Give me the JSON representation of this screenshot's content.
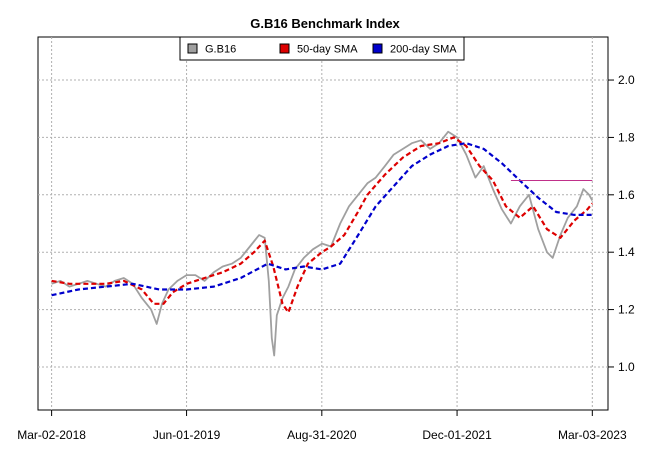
{
  "chart_data": {
    "type": "line",
    "title": "G.B16 Benchmark Index",
    "xlabel": "",
    "ylabel": "",
    "x_ticks": [
      "Mar-02-2018",
      "Jun-01-2019",
      "Aug-31-2020",
      "Dec-01-2021",
      "Mar-03-2023"
    ],
    "y_ticks": [
      "1.0",
      "1.2",
      "1.4",
      "1.6",
      "1.8",
      "2.0"
    ],
    "ylim": [
      0.85,
      2.15
    ],
    "xlim": [
      "2018-01-15",
      "2023-04-25"
    ],
    "y_axis_position": "right",
    "grid": true,
    "legend_position": "top-center",
    "series": [
      {
        "name": "G.B16",
        "color": "#a0a0a0",
        "style": "solid",
        "points": [
          [
            "2018-03-02",
            1.29
          ],
          [
            "2018-04-01",
            1.3
          ],
          [
            "2018-05-01",
            1.28
          ],
          [
            "2018-06-01",
            1.29
          ],
          [
            "2018-07-01",
            1.3
          ],
          [
            "2018-08-01",
            1.29
          ],
          [
            "2018-09-01",
            1.28
          ],
          [
            "2018-10-01",
            1.3
          ],
          [
            "2018-11-01",
            1.31
          ],
          [
            "2018-12-01",
            1.29
          ],
          [
            "2019-01-01",
            1.24
          ],
          [
            "2019-02-01",
            1.2
          ],
          [
            "2019-02-20",
            1.15
          ],
          [
            "2019-03-10",
            1.22
          ],
          [
            "2019-04-01",
            1.27
          ],
          [
            "2019-05-01",
            1.3
          ],
          [
            "2019-06-01",
            1.32
          ],
          [
            "2019-07-01",
            1.32
          ],
          [
            "2019-08-01",
            1.3
          ],
          [
            "2019-09-01",
            1.33
          ],
          [
            "2019-10-01",
            1.35
          ],
          [
            "2019-11-01",
            1.36
          ],
          [
            "2019-12-01",
            1.38
          ],
          [
            "2020-01-01",
            1.42
          ],
          [
            "2020-02-01",
            1.46
          ],
          [
            "2020-02-20",
            1.45
          ],
          [
            "2020-03-05",
            1.3
          ],
          [
            "2020-03-15",
            1.1
          ],
          [
            "2020-03-23",
            1.04
          ],
          [
            "2020-04-01",
            1.18
          ],
          [
            "2020-04-20",
            1.24
          ],
          [
            "2020-05-10",
            1.28
          ],
          [
            "2020-06-01",
            1.34
          ],
          [
            "2020-07-01",
            1.38
          ],
          [
            "2020-08-01",
            1.41
          ],
          [
            "2020-09-01",
            1.43
          ],
          [
            "2020-10-01",
            1.42
          ],
          [
            "2020-11-01",
            1.5
          ],
          [
            "2020-12-01",
            1.56
          ],
          [
            "2021-01-01",
            1.6
          ],
          [
            "2021-02-01",
            1.64
          ],
          [
            "2021-03-01",
            1.66
          ],
          [
            "2021-04-01",
            1.7
          ],
          [
            "2021-05-01",
            1.74
          ],
          [
            "2021-06-01",
            1.76
          ],
          [
            "2021-07-01",
            1.78
          ],
          [
            "2021-08-01",
            1.79
          ],
          [
            "2021-09-01",
            1.76
          ],
          [
            "2021-10-01",
            1.78
          ],
          [
            "2021-11-01",
            1.82
          ],
          [
            "2021-12-01",
            1.8
          ],
          [
            "2022-01-01",
            1.74
          ],
          [
            "2022-02-01",
            1.66
          ],
          [
            "2022-03-01",
            1.7
          ],
          [
            "2022-04-01",
            1.62
          ],
          [
            "2022-05-01",
            1.55
          ],
          [
            "2022-06-01",
            1.5
          ],
          [
            "2022-07-01",
            1.56
          ],
          [
            "2022-08-01",
            1.6
          ],
          [
            "2022-09-01",
            1.48
          ],
          [
            "2022-10-01",
            1.4
          ],
          [
            "2022-10-20",
            1.38
          ],
          [
            "2022-11-15",
            1.46
          ],
          [
            "2022-12-10",
            1.52
          ],
          [
            "2023-01-10",
            1.56
          ],
          [
            "2023-02-01",
            1.62
          ],
          [
            "2023-02-20",
            1.6
          ],
          [
            "2023-03-03",
            1.58
          ]
        ]
      },
      {
        "name": "50-day SMA",
        "color": "#dd0000",
        "style": "dashed",
        "points": [
          [
            "2018-03-02",
            1.3
          ],
          [
            "2018-05-01",
            1.29
          ],
          [
            "2018-07-01",
            1.29
          ],
          [
            "2018-09-01",
            1.29
          ],
          [
            "2018-11-01",
            1.3
          ],
          [
            "2019-01-01",
            1.27
          ],
          [
            "2019-02-10",
            1.22
          ],
          [
            "2019-03-15",
            1.22
          ],
          [
            "2019-04-15",
            1.26
          ],
          [
            "2019-06-01",
            1.29
          ],
          [
            "2019-08-01",
            1.31
          ],
          [
            "2019-10-01",
            1.33
          ],
          [
            "2019-12-01",
            1.36
          ],
          [
            "2020-01-15",
            1.4
          ],
          [
            "2020-02-20",
            1.44
          ],
          [
            "2020-03-20",
            1.35
          ],
          [
            "2020-04-20",
            1.22
          ],
          [
            "2020-05-10",
            1.19
          ],
          [
            "2020-06-10",
            1.28
          ],
          [
            "2020-07-15",
            1.36
          ],
          [
            "2020-08-31",
            1.4
          ],
          [
            "2020-10-01",
            1.42
          ],
          [
            "2020-11-15",
            1.46
          ],
          [
            "2020-12-31",
            1.54
          ],
          [
            "2021-02-01",
            1.6
          ],
          [
            "2021-04-01",
            1.67
          ],
          [
            "2021-06-01",
            1.73
          ],
          [
            "2021-08-01",
            1.77
          ],
          [
            "2021-10-01",
            1.78
          ],
          [
            "2021-11-20",
            1.8
          ],
          [
            "2022-01-01",
            1.77
          ],
          [
            "2022-02-15",
            1.7
          ],
          [
            "2022-04-01",
            1.65
          ],
          [
            "2022-05-15",
            1.56
          ],
          [
            "2022-07-01",
            1.52
          ],
          [
            "2022-08-15",
            1.56
          ],
          [
            "2022-10-01",
            1.48
          ],
          [
            "2022-11-15",
            1.45
          ],
          [
            "2023-01-01",
            1.51
          ],
          [
            "2023-02-15",
            1.55
          ],
          [
            "2023-03-03",
            1.57
          ]
        ]
      },
      {
        "name": "200-day SMA",
        "color": "#0000cc",
        "style": "dashed",
        "points": [
          [
            "2018-03-02",
            1.25
          ],
          [
            "2018-06-01",
            1.27
          ],
          [
            "2018-09-01",
            1.28
          ],
          [
            "2018-12-01",
            1.29
          ],
          [
            "2019-03-01",
            1.27
          ],
          [
            "2019-06-01",
            1.27
          ],
          [
            "2019-09-01",
            1.28
          ],
          [
            "2019-12-01",
            1.31
          ],
          [
            "2020-03-01",
            1.36
          ],
          [
            "2020-05-01",
            1.34
          ],
          [
            "2020-07-01",
            1.35
          ],
          [
            "2020-09-01",
            1.34
          ],
          [
            "2020-11-01",
            1.36
          ],
          [
            "2021-01-01",
            1.46
          ],
          [
            "2021-03-01",
            1.56
          ],
          [
            "2021-05-01",
            1.63
          ],
          [
            "2021-07-01",
            1.7
          ],
          [
            "2021-09-01",
            1.74
          ],
          [
            "2021-11-01",
            1.77
          ],
          [
            "2022-01-01",
            1.78
          ],
          [
            "2022-03-01",
            1.76
          ],
          [
            "2022-05-01",
            1.71
          ],
          [
            "2022-07-01",
            1.65
          ],
          [
            "2022-09-01",
            1.59
          ],
          [
            "2022-11-01",
            1.54
          ],
          [
            "2023-01-01",
            1.53
          ],
          [
            "2023-03-03",
            1.53
          ]
        ]
      }
    ],
    "annotations": [
      {
        "type": "hline",
        "color": "#c0308a",
        "y": 1.65,
        "x_from": "2022-06-01",
        "x_to": "2023-03-03"
      }
    ]
  }
}
